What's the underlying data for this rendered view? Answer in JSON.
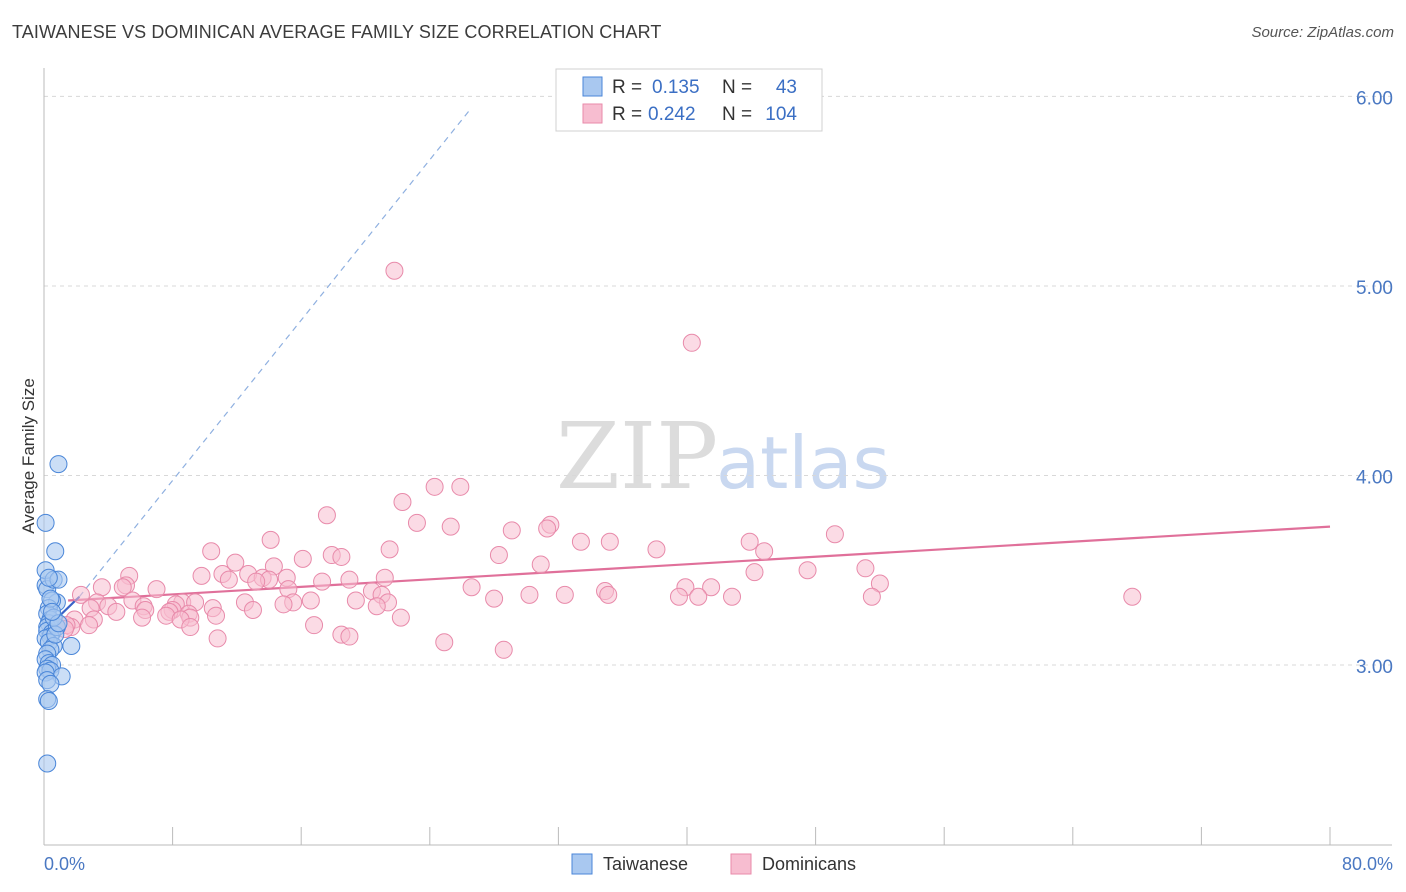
{
  "title": "TAIWANESE VS DOMINICAN AVERAGE FAMILY SIZE CORRELATION CHART",
  "source": "Source: ZipAtlas.com",
  "watermark": {
    "zip": "ZIP",
    "atlas": "atlas"
  },
  "colors": {
    "taiwanese_fill": "#a9c8f0",
    "taiwanese_stroke": "#4a86d8",
    "taiwanese_line": "#3a62c8",
    "dominican_fill": "#f7bdd0",
    "dominican_stroke": "#e88aaa",
    "dominican_line": "#e0709a",
    "tick_text": "#4a78c2",
    "grid": "#d8d8d8"
  },
  "legend": {
    "rows": [
      {
        "r_label": "R =",
        "r_value": "0.135",
        "n_label": "N =",
        "n_value": "43"
      },
      {
        "r_label": "R =",
        "r_value": "0.242",
        "n_label": "N =",
        "n_value": "104"
      }
    ]
  },
  "chart_data": {
    "type": "scatter",
    "title": "TAIWANESE VS DOMINICAN AVERAGE FAMILY SIZE CORRELATION CHART",
    "xlabel": "",
    "ylabel": "Average Family Size",
    "xlim": [
      0,
      80
    ],
    "ylim": [
      2.0,
      6.1
    ],
    "x_tick_labels": [
      "0.0%",
      "80.0%"
    ],
    "y_ticks": [
      3.0,
      4.0,
      5.0,
      6.0
    ],
    "y_tick_labels": [
      "3.00",
      "4.00",
      "5.00",
      "6.00"
    ],
    "grid": true,
    "legend_position": "top-center",
    "series": [
      {
        "name": "Taiwanese",
        "r": 0.135,
        "n": 43,
        "trend": {
          "x": [
            0.0,
            2.2
          ],
          "y": [
            3.18,
            3.36
          ]
        },
        "trend_extended": {
          "x": [
            2.2,
            26.5
          ],
          "y": [
            3.36,
            5.93
          ]
        },
        "points": [
          [
            0.1,
            3.42
          ],
          [
            0.2,
            3.4
          ],
          [
            0.1,
            3.5
          ],
          [
            0.1,
            3.75
          ],
          [
            0.9,
            4.06
          ],
          [
            0.7,
            3.6
          ],
          [
            0.6,
            3.45
          ],
          [
            0.9,
            3.45
          ],
          [
            0.8,
            3.33
          ],
          [
            0.5,
            3.34
          ],
          [
            0.3,
            3.3
          ],
          [
            0.2,
            3.27
          ],
          [
            0.4,
            3.24
          ],
          [
            0.3,
            3.22
          ],
          [
            0.2,
            3.2
          ],
          [
            0.2,
            3.18
          ],
          [
            0.5,
            3.17
          ],
          [
            0.4,
            3.15
          ],
          [
            0.1,
            3.14
          ],
          [
            0.3,
            3.12
          ],
          [
            0.6,
            3.1
          ],
          [
            0.4,
            3.08
          ],
          [
            1.7,
            3.1
          ],
          [
            0.2,
            3.06
          ],
          [
            0.1,
            3.03
          ],
          [
            0.3,
            3.01
          ],
          [
            0.5,
            3.0
          ],
          [
            0.2,
            2.98
          ],
          [
            0.4,
            2.97
          ],
          [
            0.1,
            2.96
          ],
          [
            1.1,
            2.94
          ],
          [
            0.2,
            2.92
          ],
          [
            0.4,
            2.9
          ],
          [
            0.2,
            2.82
          ],
          [
            0.3,
            2.81
          ],
          [
            0.2,
            2.48
          ],
          [
            0.8,
            3.2
          ],
          [
            0.6,
            3.25
          ],
          [
            0.4,
            3.35
          ],
          [
            0.7,
            3.16
          ],
          [
            0.9,
            3.22
          ],
          [
            0.3,
            3.46
          ],
          [
            0.5,
            3.28
          ]
        ]
      },
      {
        "name": "Dominicans",
        "r": 0.242,
        "n": 104,
        "trend": {
          "x": [
            1.5,
            80.0
          ],
          "y": [
            3.34,
            3.73
          ]
        },
        "points": [
          [
            21.8,
            5.08
          ],
          [
            40.3,
            4.7
          ],
          [
            24.3,
            3.94
          ],
          [
            25.9,
            3.94
          ],
          [
            22.3,
            3.86
          ],
          [
            17.6,
            3.79
          ],
          [
            23.2,
            3.75
          ],
          [
            25.3,
            3.73
          ],
          [
            31.5,
            3.74
          ],
          [
            31.3,
            3.72
          ],
          [
            29.1,
            3.71
          ],
          [
            49.2,
            3.69
          ],
          [
            14.1,
            3.66
          ],
          [
            33.4,
            3.65
          ],
          [
            35.2,
            3.65
          ],
          [
            43.9,
            3.65
          ],
          [
            38.1,
            3.61
          ],
          [
            44.8,
            3.6
          ],
          [
            10.4,
            3.6
          ],
          [
            21.5,
            3.61
          ],
          [
            17.9,
            3.58
          ],
          [
            18.5,
            3.57
          ],
          [
            28.3,
            3.58
          ],
          [
            16.1,
            3.56
          ],
          [
            11.9,
            3.54
          ],
          [
            30.9,
            3.53
          ],
          [
            14.3,
            3.52
          ],
          [
            47.5,
            3.5
          ],
          [
            51.1,
            3.51
          ],
          [
            44.2,
            3.49
          ],
          [
            11.1,
            3.48
          ],
          [
            12.7,
            3.48
          ],
          [
            9.8,
            3.47
          ],
          [
            13.6,
            3.46
          ],
          [
            15.1,
            3.46
          ],
          [
            14.0,
            3.45
          ],
          [
            11.5,
            3.45
          ],
          [
            21.2,
            3.46
          ],
          [
            19.0,
            3.45
          ],
          [
            17.3,
            3.44
          ],
          [
            52.0,
            3.43
          ],
          [
            13.2,
            3.44
          ],
          [
            5.3,
            3.47
          ],
          [
            5.1,
            3.42
          ],
          [
            4.9,
            3.41
          ],
          [
            26.6,
            3.41
          ],
          [
            39.9,
            3.41
          ],
          [
            41.5,
            3.41
          ],
          [
            7.0,
            3.4
          ],
          [
            3.6,
            3.41
          ],
          [
            15.2,
            3.4
          ],
          [
            20.4,
            3.39
          ],
          [
            34.9,
            3.39
          ],
          [
            35.1,
            3.37
          ],
          [
            39.5,
            3.36
          ],
          [
            40.7,
            3.36
          ],
          [
            42.8,
            3.36
          ],
          [
            51.5,
            3.36
          ],
          [
            67.7,
            3.36
          ],
          [
            30.2,
            3.37
          ],
          [
            32.4,
            3.37
          ],
          [
            21.0,
            3.37
          ],
          [
            2.3,
            3.37
          ],
          [
            28.0,
            3.35
          ],
          [
            16.6,
            3.34
          ],
          [
            15.5,
            3.33
          ],
          [
            12.5,
            3.33
          ],
          [
            14.9,
            3.32
          ],
          [
            19.4,
            3.34
          ],
          [
            21.4,
            3.33
          ],
          [
            8.6,
            3.33
          ],
          [
            9.4,
            3.33
          ],
          [
            5.5,
            3.34
          ],
          [
            3.3,
            3.33
          ],
          [
            6.2,
            3.31
          ],
          [
            4.0,
            3.31
          ],
          [
            8.2,
            3.32
          ],
          [
            20.7,
            3.31
          ],
          [
            10.5,
            3.3
          ],
          [
            13.0,
            3.29
          ],
          [
            2.9,
            3.3
          ],
          [
            6.3,
            3.29
          ],
          [
            8.0,
            3.29
          ],
          [
            4.5,
            3.28
          ],
          [
            7.8,
            3.28
          ],
          [
            9.0,
            3.27
          ],
          [
            7.6,
            3.26
          ],
          [
            10.7,
            3.26
          ],
          [
            6.1,
            3.25
          ],
          [
            9.1,
            3.25
          ],
          [
            3.1,
            3.24
          ],
          [
            22.2,
            3.25
          ],
          [
            8.5,
            3.24
          ],
          [
            1.9,
            3.24
          ],
          [
            16.8,
            3.21
          ],
          [
            2.8,
            3.21
          ],
          [
            1.7,
            3.2
          ],
          [
            9.1,
            3.2
          ],
          [
            1.4,
            3.21
          ],
          [
            1.3,
            3.19
          ],
          [
            18.5,
            3.16
          ],
          [
            19.0,
            3.15
          ],
          [
            10.8,
            3.14
          ],
          [
            24.9,
            3.12
          ],
          [
            28.6,
            3.08
          ]
        ]
      }
    ]
  },
  "bottom_legend": [
    {
      "label": "Taiwanese"
    },
    {
      "label": "Dominicans"
    }
  ]
}
